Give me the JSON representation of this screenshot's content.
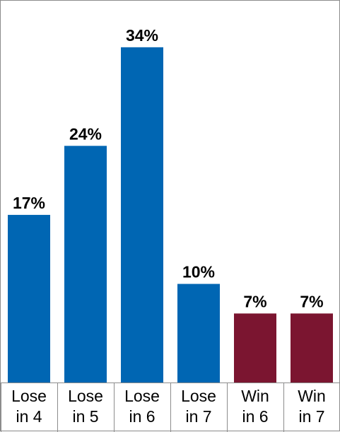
{
  "chart_data": {
    "type": "bar",
    "categories": [
      [
        "Lose",
        "in 4"
      ],
      [
        "Lose",
        "in 5"
      ],
      [
        "Lose",
        "in 6"
      ],
      [
        "Lose",
        "in 7"
      ],
      [
        "Win",
        "in 6"
      ],
      [
        "Win",
        "in 7"
      ]
    ],
    "values": [
      17,
      24,
      34,
      10,
      7,
      7
    ],
    "value_labels": [
      "17%",
      "24%",
      "34%",
      "10%",
      "7%",
      "7%"
    ],
    "colors": [
      "#0066B3",
      "#0066B3",
      "#0066B3",
      "#0066B3",
      "#7B1530",
      "#7B1530"
    ],
    "ylim": [
      0,
      37
    ],
    "grid": false,
    "legend": "none"
  }
}
